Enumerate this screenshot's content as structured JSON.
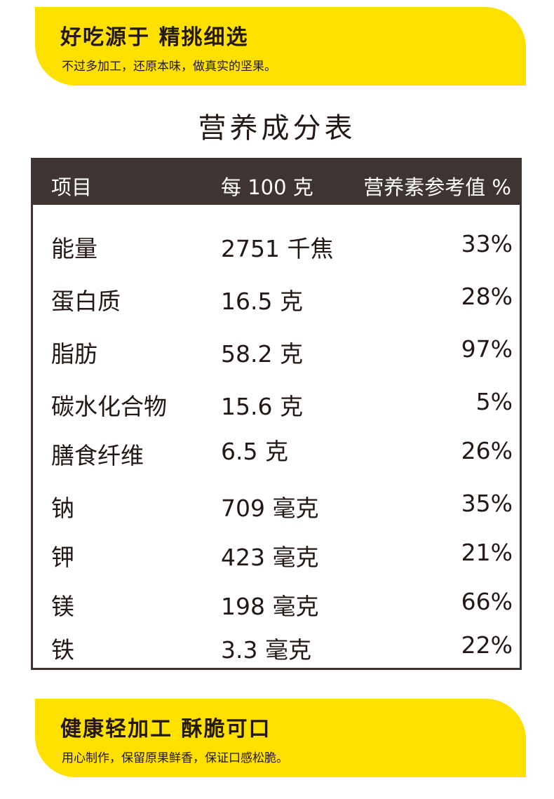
{
  "top_banner": {
    "headline": "好吃源于  精挑细选",
    "subline": "不过多加工，还原本味，做真实的坚果。"
  },
  "table_title": "营养成分表",
  "table": {
    "headers": [
      "项目",
      "每 100 克",
      "营养素参考值 %"
    ],
    "rows": [
      {
        "name": "能量",
        "amount": "2751 千焦",
        "pct": "33%"
      },
      {
        "name": "蛋白质",
        "amount": "16.5 克",
        "pct": "28%"
      },
      {
        "name": "脂肪",
        "amount": "58.2 克",
        "pct": "97%"
      },
      {
        "name": "碳水化合物",
        "amount": "15.6 克",
        "pct": "5%"
      },
      {
        "name": "膳食纤维",
        "amount": "6.5 克",
        "pct": "26%"
      },
      {
        "name": "钠",
        "amount": "709 毫克",
        "pct": "35%"
      },
      {
        "name": "钾",
        "amount": "423 毫克",
        "pct": "21%"
      },
      {
        "name": "镁",
        "amount": "198 毫克",
        "pct": "66%"
      },
      {
        "name": "铁",
        "amount": "3.3 毫克",
        "pct": "22%"
      }
    ]
  },
  "bottom_banner": {
    "headline": "健康轻加工  酥脆可口",
    "subline": "用心制作，保留原果鲜香，保证口感松脆。"
  },
  "colors": {
    "banner_yellow": "#ffe100",
    "header_dark": "#3e3431",
    "text": "#231815"
  }
}
